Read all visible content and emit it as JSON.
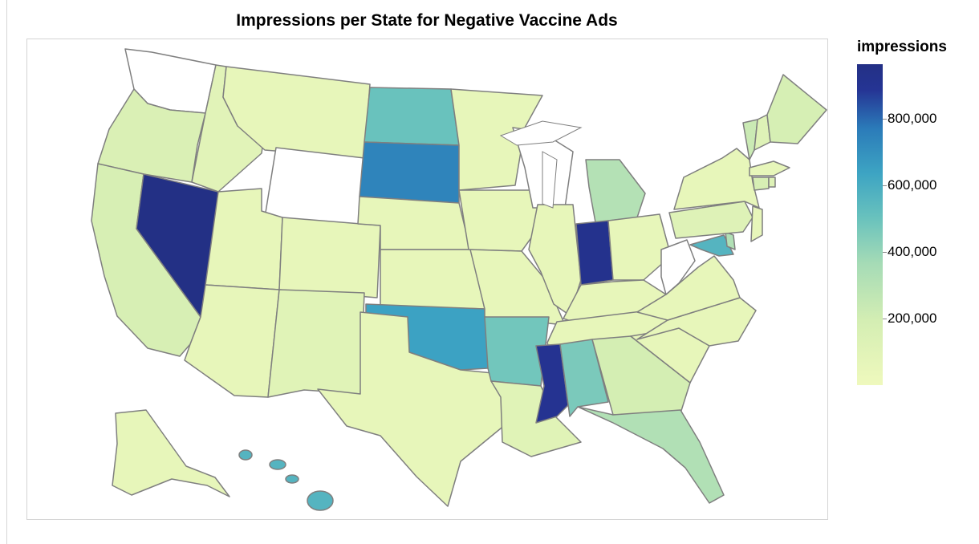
{
  "chart_data": {
    "type": "choropleth",
    "title": "Impressions per State for Negative Vaccine Ads",
    "color_scale": {
      "field": "impressions",
      "domain": [
        0,
        960000
      ],
      "low_color": "#eff9bd",
      "high_color": "#233085",
      "ticks": [
        "800,000",
        "600,000",
        "400,000",
        "200,000"
      ],
      "tick_values": [
        800000,
        600000,
        400000,
        200000
      ]
    },
    "no_data_color": "#ffffff",
    "values": {
      "WA": null,
      "WY": null,
      "WI": null,
      "WV": null,
      "OR": 150000,
      "CA": 170000,
      "NV": 960000,
      "ID": 100000,
      "MT": 60000,
      "UT": 60000,
      "AZ": 60000,
      "CO": 60000,
      "NM": 110000,
      "TX": 60000,
      "ND": 500000,
      "SD": 740000,
      "NE": 60000,
      "KS": 60000,
      "OK": 640000,
      "MN": 60000,
      "IA": 60000,
      "MO": 60000,
      "AR": 480000,
      "LA": 110000,
      "IL": 60000,
      "MI": 310000,
      "IN": 920000,
      "OH": 60000,
      "KY": 60000,
      "TN": 60000,
      "MS": 900000,
      "AL": 460000,
      "GA": 190000,
      "FL": 320000,
      "SC": 60000,
      "NC": 60000,
      "VA": 60000,
      "MD": 560000,
      "DE": 320000,
      "PA": 120000,
      "NJ": 60000,
      "NY": 60000,
      "VT": 230000,
      "NH": 120000,
      "ME": 180000,
      "MA": 60000,
      "CT": 170000,
      "RI": 120000,
      "AK": 60000,
      "HI": 560000
    }
  },
  "legend": {
    "title": "impressions"
  }
}
